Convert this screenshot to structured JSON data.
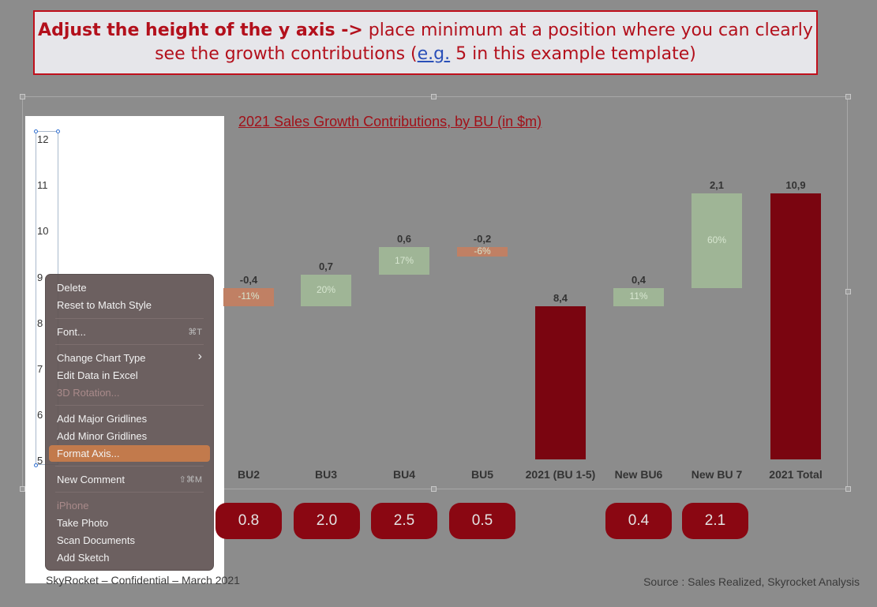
{
  "banner": {
    "bold": "Adjust the height of the y axis ->",
    "text1": " place minimum at a position where you can clearly see the growth contributions (",
    "link": "e.g.",
    "text2": " 5 in this example template)"
  },
  "chart_data": {
    "type": "bar",
    "title": "2021 Sales Growth Contributions, by BU (in $m)",
    "y_ticks": [
      "12",
      "11",
      "10",
      "9",
      "8",
      "7",
      "6",
      "5"
    ],
    "ylim": [
      5,
      12
    ],
    "categories": [
      "BU2",
      "BU3",
      "BU4",
      "BU5",
      "2021 (BU 1-5)",
      "New BU6",
      "New BU 7",
      "2021 Total"
    ],
    "value_labels": [
      "-0,4",
      "0,7",
      "0,6",
      "-0,2",
      "8,4",
      "0,4",
      "2,1",
      "10,9"
    ],
    "pct_labels": [
      "-11%",
      "20%",
      "17%",
      "-6%",
      "",
      "11%",
      "60%",
      ""
    ],
    "colors": {
      "increase": "#9fb596",
      "decrease": "#c08064",
      "total": "#7a0510"
    }
  },
  "pills": [
    "0.8",
    "2.0",
    "2.5",
    "0.5",
    "0.4",
    "2.1"
  ],
  "footer": {
    "left": "SkyRocket – Confidential – March 2021",
    "right": "Source : Sales Realized, Skyrocket Analysis"
  },
  "context_menu": {
    "delete": "Delete",
    "reset": "Reset to Match Style",
    "font": "Font...",
    "font_shortcut": "⌘T",
    "change_chart_type": "Change Chart Type",
    "change_arrow": "›",
    "edit_data": "Edit Data in Excel",
    "rotation": "3D Rotation...",
    "major_grid": "Add Major Gridlines",
    "minor_grid": "Add Minor Gridlines",
    "format_axis": "Format Axis...",
    "new_comment": "New Comment",
    "comment_shortcut": "⇧⌘M",
    "iphone": "iPhone",
    "take_photo": "Take Photo",
    "scan_docs": "Scan Documents",
    "add_sketch": "Add Sketch"
  }
}
